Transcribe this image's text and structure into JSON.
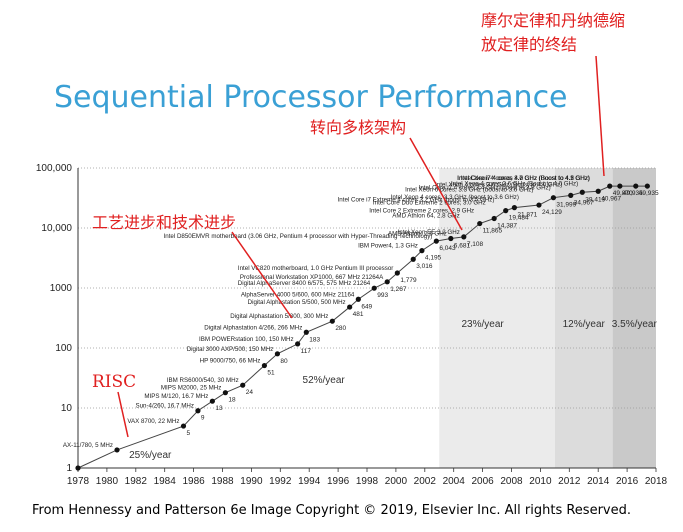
{
  "title": "Sequential Processor Performance",
  "footer": "From Hennessy and Patterson 6e Image Copyright © 2019, Elsevier Inc. All rights Reserved.",
  "colors": {
    "title": "#3aa0d5",
    "annotation": "#e02020",
    "region_dark": "#c9c9c9",
    "region_mid": "#dcdcdc",
    "region_light": "#ebebeb"
  },
  "chart_data": {
    "type": "scatter",
    "xlim": [
      1978,
      2018
    ],
    "ylim": [
      1,
      100000
    ],
    "yscale": "log",
    "x_ticks": [
      "1978",
      "1980",
      "1982",
      "1984",
      "1986",
      "1988",
      "1990",
      "1992",
      "1994",
      "1996",
      "1998",
      "2000",
      "2002",
      "2004",
      "2006",
      "2008",
      "2010",
      "2012",
      "2014",
      "2016",
      "2018"
    ],
    "y_ticks": [
      "1",
      "10",
      "100",
      "1000",
      "10,000",
      "100,000"
    ],
    "regions": [
      {
        "from": 1978,
        "to": 1986,
        "rate": "25%/year"
      },
      {
        "from": 1986,
        "to": 2003,
        "rate": "52%/year"
      },
      {
        "from": 2003,
        "to": 2011,
        "rate": "23%/year"
      },
      {
        "from": 2011,
        "to": 2015,
        "rate": "12%/year"
      },
      {
        "from": 2015,
        "to": 2018,
        "rate": "3.5%/year"
      }
    ],
    "points": [
      {
        "x": 1978,
        "y": 1,
        "value": "",
        "name": ""
      },
      {
        "x": 1980.7,
        "y": 2,
        "value": "",
        "name": "AX-11/780, 5 MHz"
      },
      {
        "x": 1985.3,
        "y": 5,
        "value": "5",
        "name": "VAX 8700, 22 MHz"
      },
      {
        "x": 1986.3,
        "y": 9,
        "value": "9",
        "name": "Sun-4/260, 16.7 MHz"
      },
      {
        "x": 1987.3,
        "y": 13,
        "value": "13",
        "name": "MIPS M/120, 16.7 MHz"
      },
      {
        "x": 1988.2,
        "y": 18,
        "value": "18",
        "name": "MIPS M2000, 25 MHz"
      },
      {
        "x": 1989.4,
        "y": 24,
        "value": "24",
        "name": "IBM RS6000/540, 30 MHz"
      },
      {
        "x": 1990.9,
        "y": 51,
        "value": "51",
        "name": "HP 9000/750, 66 MHz"
      },
      {
        "x": 1991.8,
        "y": 80,
        "value": "80",
        "name": "Digital 3000 AXP/500, 150 MHz"
      },
      {
        "x": 1993.2,
        "y": 117,
        "value": "117",
        "name": "IBM POWERstation 100, 150 MHz"
      },
      {
        "x": 1993.8,
        "y": 183,
        "value": "183",
        "name": "Digital Alphastation 4/266, 266 MHz"
      },
      {
        "x": 1995.6,
        "y": 280,
        "value": "280",
        "name": "Digital Alphastation 5/300, 300 MHz"
      },
      {
        "x": 1996.8,
        "y": 481,
        "value": "481",
        "name": "Digital Alphastation 5/500, 500 MHz"
      },
      {
        "x": 1997.4,
        "y": 649,
        "value": "649",
        "name": "AlphaServer 4000 5/600, 600 MHz 21164"
      },
      {
        "x": 1998.5,
        "y": 993,
        "value": "993",
        "name": "Digital AlphaServer 8400 6/575, 575 MHz 21264"
      },
      {
        "x": 1999.4,
        "y": 1267,
        "value": "1,267",
        "name": "Professional Workstation XP1000, 667 MHz 21264A"
      },
      {
        "x": 2000.1,
        "y": 1779,
        "value": "1,779",
        "name": "Intel VC820 motherboard, 1.0 GHz Pentium III processor"
      },
      {
        "x": 2001.2,
        "y": 3016,
        "value": "3,016",
        "name": ""
      },
      {
        "x": 2001.8,
        "y": 4195,
        "value": "4,195",
        "name": "IBM Power4, 1.3 GHz"
      },
      {
        "x": 2002.8,
        "y": 6043,
        "value": "6,043",
        "name": "Intel D850EMVR motherboard (3.06 GHz, Pentium 4 processor with Hyper-Threading Technology)"
      },
      {
        "x": 2003.8,
        "y": 6681,
        "value": "6,681",
        "name": "AMD Athlon, 2.6 GHz"
      },
      {
        "x": 2004.7,
        "y": 7108,
        "value": "7,108",
        "name": "Intel Xeon EE 3.2 GHz"
      },
      {
        "x": 2005.8,
        "y": 11865,
        "value": "11,865",
        "name": "AMD Athlon 64, 2.8 GHz"
      },
      {
        "x": 2006.8,
        "y": 14387,
        "value": "14,387",
        "name": "Intel Core 2 Extreme 2 cores, 2.9 GHz"
      },
      {
        "x": 2007.6,
        "y": 19484,
        "value": "19,484",
        "name": "Intel Core Duo Extreme 2 cores, 3.0 GHz"
      },
      {
        "x": 2008.2,
        "y": 21871,
        "value": "21,871",
        "name": "Intel Core i7 Extreme 4 cores 3.2 GHz (boost to 3.5 GHz)"
      },
      {
        "x": 2009.9,
        "y": 24129,
        "value": "24,129",
        "name": "Intel Xeon 4 cores, 3.3 GHz (boost to 3.6 GHz)"
      },
      {
        "x": 2010.9,
        "y": 31999,
        "value": "31,999",
        "name": "Intel Xeon 6 cores, 3.3 GHz (boost to 3.6 GHz)"
      },
      {
        "x": 2012.1,
        "y": 34967,
        "value": "34,967",
        "name": "Intel Core i7 4 cores 3.4 GHz (boost to 3.8 GHz)"
      },
      {
        "x": 2012.9,
        "y": 39419,
        "value": "39,419",
        "name": "Intel Xeon 4 cores 3.6 GHz (Boost to 4.0 GHz)"
      },
      {
        "x": 2014.0,
        "y": 40967,
        "value": "40,967",
        "name": "Intel Xeon 4 cores 3.6 GHz (Boost to 4.0 GHz)"
      },
      {
        "x": 2014.8,
        "y": 49870,
        "value": "49,870",
        "name": "Intel Xeon 4 cores, 3.7 GHz (Boost to 4.1 GHz)"
      },
      {
        "x": 2015.5,
        "y": 49935,
        "value": "49,935",
        "name": "Intel Core i7 4 cores 4.0 GHz (Boost to 4.2 GHz)"
      },
      {
        "x": 2016.6,
        "y": 49935,
        "value": "49,935",
        "name": "Intel Core i7 4 cores 4.0 GHz (Boost to 4.2 GHz)"
      },
      {
        "x": 2017.4,
        "y": 49935,
        "value": "",
        "name": "Intel Core i7 4 cores 4.2 GHz (Boost to 4.5 GHz)"
      }
    ],
    "annotations": [
      {
        "text": "RISC"
      },
      {
        "text": "工艺进步和技术进步"
      },
      {
        "text": "转向多核架构"
      },
      {
        "text": "摩尔定律和丹纳德缩"
      },
      {
        "text": "放定律的终结"
      }
    ]
  }
}
